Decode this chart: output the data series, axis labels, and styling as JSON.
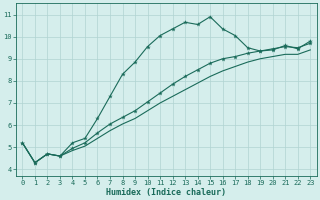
{
  "xlabel": "Humidex (Indice chaleur)",
  "xlim": [
    -0.5,
    23.5
  ],
  "ylim": [
    3.7,
    11.5
  ],
  "yticks": [
    4,
    5,
    6,
    7,
    8,
    9,
    10,
    11
  ],
  "xticks": [
    0,
    1,
    2,
    3,
    4,
    5,
    6,
    7,
    8,
    9,
    10,
    11,
    12,
    13,
    14,
    15,
    16,
    17,
    18,
    19,
    20,
    21,
    22,
    23
  ],
  "bg_color": "#d5eeec",
  "grid_color": "#b0d4d2",
  "line_color": "#1a6b5a",
  "line1_x": [
    0,
    1,
    2,
    3,
    4,
    5,
    6,
    7,
    8,
    9,
    10,
    11,
    12,
    13,
    14,
    15,
    16,
    17,
    18,
    19,
    20,
    21,
    22,
    23
  ],
  "line1_y": [
    5.2,
    4.3,
    4.7,
    4.6,
    5.2,
    5.4,
    6.3,
    7.3,
    8.3,
    8.85,
    9.55,
    10.05,
    10.35,
    10.65,
    10.55,
    10.9,
    10.35,
    10.05,
    9.5,
    9.35,
    9.4,
    9.6,
    9.45,
    9.8
  ],
  "line2_x": [
    0,
    1,
    2,
    3,
    4,
    5,
    6,
    7,
    8,
    9,
    10,
    11,
    12,
    13,
    14,
    15,
    16,
    17,
    18,
    19,
    20,
    21,
    22,
    23
  ],
  "line2_y": [
    5.2,
    4.3,
    4.7,
    4.6,
    4.95,
    5.2,
    5.65,
    6.05,
    6.35,
    6.65,
    7.05,
    7.45,
    7.85,
    8.2,
    8.5,
    8.8,
    9.0,
    9.1,
    9.25,
    9.35,
    9.45,
    9.55,
    9.5,
    9.7
  ],
  "line3_x": [
    0,
    1,
    2,
    3,
    4,
    5,
    6,
    7,
    8,
    9,
    10,
    11,
    12,
    13,
    14,
    15,
    16,
    17,
    18,
    19,
    20,
    21,
    22,
    23
  ],
  "line3_y": [
    5.2,
    4.3,
    4.7,
    4.6,
    4.85,
    5.05,
    5.4,
    5.75,
    6.05,
    6.3,
    6.65,
    7.0,
    7.3,
    7.6,
    7.9,
    8.2,
    8.45,
    8.65,
    8.85,
    9.0,
    9.1,
    9.2,
    9.2,
    9.4
  ]
}
